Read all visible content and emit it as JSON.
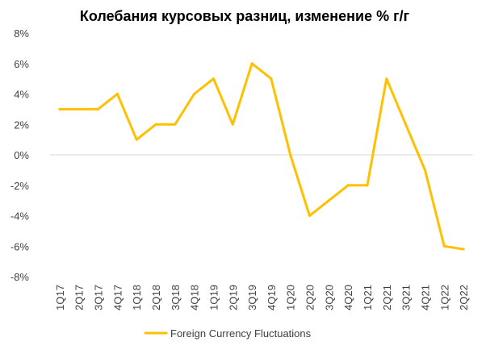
{
  "chart_data": {
    "type": "line",
    "title": "Колебания курсовых разниц, изменение % г/г",
    "categories": [
      "1Q17",
      "2Q17",
      "3Q17",
      "4Q17",
      "1Q18",
      "2Q18",
      "3Q18",
      "4Q18",
      "1Q19",
      "2Q19",
      "3Q19",
      "4Q19",
      "1Q20",
      "2Q20",
      "3Q20",
      "4Q20",
      "1Q21",
      "2Q21",
      "3Q21",
      "4Q21",
      "1Q22",
      "2Q22"
    ],
    "series": [
      {
        "name": "Foreign Currency Fluctuations",
        "color": "#FFC000",
        "values": [
          3,
          3,
          3,
          4,
          1,
          2,
          2,
          4,
          5,
          2,
          6,
          5,
          0,
          -4,
          -3,
          -2,
          -2,
          5,
          2,
          -1,
          -6,
          -6.2
        ]
      }
    ],
    "y_ticks": [
      "8%",
      "6%",
      "4%",
      "2%",
      "0%",
      "-2%",
      "-4%",
      "-6%",
      "-8%"
    ],
    "y_tick_values": [
      8,
      6,
      4,
      2,
      0,
      -2,
      -4,
      -6,
      -8
    ],
    "ylim": [
      -8,
      8
    ],
    "xlabel": "",
    "ylabel": "",
    "grid": false,
    "legend_position": "bottom",
    "zero_line_color": "#D9D9D9",
    "line_color": "#FFC000"
  }
}
